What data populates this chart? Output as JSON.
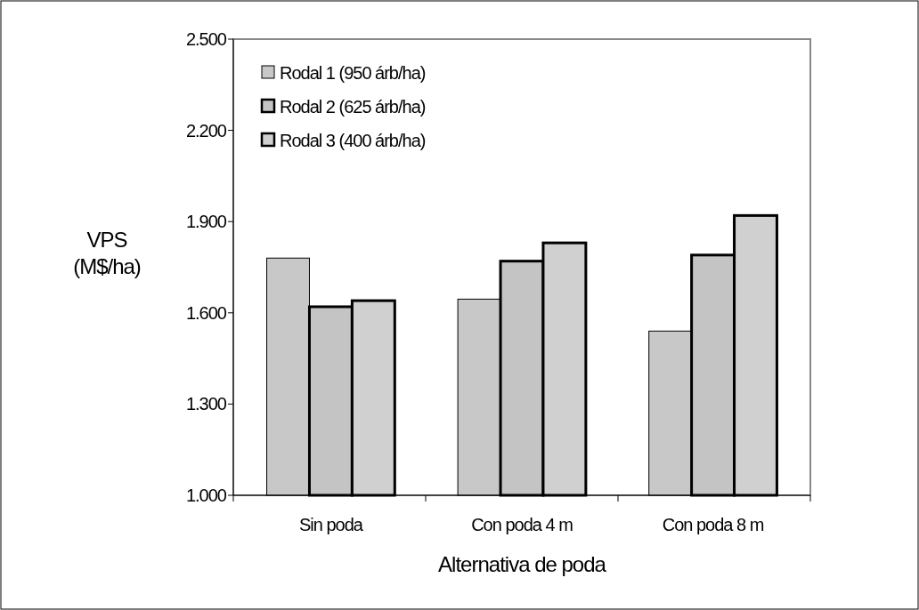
{
  "chart_data": {
    "type": "bar",
    "xlabel": "Alternativa de poda",
    "ylabel": "VPS (M$/ha)",
    "categories": [
      "Sin poda",
      "Con poda 4 m",
      "Con poda 8 m"
    ],
    "series": [
      {
        "name": "Rodal 1 (950 árb/ha)",
        "color": "#c8c8c8",
        "values": [
          1780,
          1645,
          1540
        ]
      },
      {
        "name": "Rodal 2 (625 árb/ha)",
        "color": "#c4c4c4",
        "values": [
          1620,
          1770,
          1790
        ]
      },
      {
        "name": "Rodal 3 (400 árb/ha)",
        "color": "#d0d0d0",
        "values": [
          1640,
          1830,
          1920
        ]
      }
    ],
    "ylim": [
      1000,
      2500
    ],
    "yticks": [
      {
        "value": 1000,
        "label": "1.000"
      },
      {
        "value": 1300,
        "label": "1.300"
      },
      {
        "value": 1600,
        "label": "1.600"
      },
      {
        "value": 1900,
        "label": "1.900"
      },
      {
        "value": 2200,
        "label": "2.200"
      },
      {
        "value": 2500,
        "label": "2.500"
      }
    ],
    "grid": false,
    "legend": "top left"
  }
}
